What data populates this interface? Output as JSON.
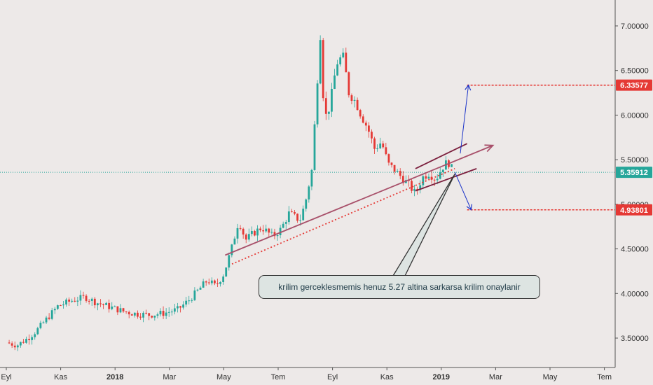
{
  "chart_data": {
    "type": "candlestick",
    "title": "",
    "xlabel": "",
    "ylabel": "",
    "ylim": [
      3.3,
      7.3
    ],
    "y_ticks": [
      "7.00000",
      "6.50000",
      "6.00000",
      "5.50000",
      "5.00000",
      "4.50000",
      "4.00000",
      "3.50000"
    ],
    "y_tick_values": [
      7.0,
      6.5,
      6.0,
      5.5,
      5.0,
      4.5,
      4.0,
      3.5
    ],
    "x_ticks": [
      "Eyl",
      "Kas",
      "2018",
      "Mar",
      "May",
      "Tem",
      "Eyl",
      "Kas",
      "2019",
      "Mar",
      "May",
      "Tem"
    ],
    "x_ticks_bold": [
      false,
      false,
      true,
      false,
      false,
      false,
      false,
      false,
      true,
      false,
      false,
      false
    ],
    "x_range_months": [
      0,
      22.7
    ],
    "price_path": [
      [
        0,
        3.45
      ],
      [
        0.4,
        3.42
      ],
      [
        0.8,
        3.5
      ],
      [
        1.1,
        3.58
      ],
      [
        1.5,
        3.72
      ],
      [
        1.9,
        3.86
      ],
      [
        2.4,
        3.92
      ],
      [
        2.9,
        3.96
      ],
      [
        3.3,
        3.9
      ],
      [
        3.8,
        3.85
      ],
      [
        4.3,
        3.8
      ],
      [
        4.8,
        3.77
      ],
      [
        5.3,
        3.76
      ],
      [
        5.8,
        3.78
      ],
      [
        6.3,
        3.82
      ],
      [
        6.7,
        3.92
      ],
      [
        7.1,
        4.05
      ],
      [
        7.4,
        4.15
      ],
      [
        7.7,
        4.08
      ],
      [
        8.0,
        4.22
      ],
      [
        8.3,
        4.52
      ],
      [
        8.55,
        4.82
      ],
      [
        8.8,
        4.6
      ],
      [
        9.1,
        4.68
      ],
      [
        9.4,
        4.74
      ],
      [
        9.8,
        4.64
      ],
      [
        10.1,
        4.72
      ],
      [
        10.4,
        4.9
      ],
      [
        10.8,
        4.82
      ],
      [
        11.0,
        5.02
      ],
      [
        11.25,
        5.4
      ],
      [
        11.4,
        6.2
      ],
      [
        11.55,
        6.9
      ],
      [
        11.7,
        5.95
      ],
      [
        11.9,
        6.1
      ],
      [
        12.05,
        6.4
      ],
      [
        12.2,
        6.62
      ],
      [
        12.4,
        6.65
      ],
      [
        12.6,
        6.25
      ],
      [
        12.85,
        6.15
      ],
      [
        13.05,
        6.0
      ],
      [
        13.3,
        5.85
      ],
      [
        13.55,
        5.62
      ],
      [
        13.8,
        5.7
      ],
      [
        14.05,
        5.45
      ],
      [
        14.3,
        5.38
      ],
      [
        14.55,
        5.3
      ],
      [
        14.8,
        5.22
      ],
      [
        15.05,
        5.12
      ],
      [
        15.3,
        5.3
      ],
      [
        15.55,
        5.35
      ],
      [
        15.8,
        5.28
      ],
      [
        16.05,
        5.42
      ],
      [
        16.25,
        5.48
      ],
      [
        16.45,
        5.36
      ]
    ],
    "price_lines": [
      {
        "label": "6.33577",
        "value": 6.33577,
        "color": "#e53935"
      },
      {
        "label": "5.35912",
        "value": 5.35912,
        "color": "#26a69a"
      },
      {
        "label": "4.93801",
        "value": 4.93801,
        "color": "#e53935"
      }
    ],
    "trendlines": [
      {
        "id": "main-trendline-arrow",
        "from": [
          8.05,
          4.43
        ],
        "to": [
          17.9,
          5.66
        ],
        "color": "#a8506a",
        "style": "solid",
        "arrow": true
      },
      {
        "id": "dotted-support",
        "from": [
          8.3,
          4.33
        ],
        "to": [
          16.5,
          5.4
        ],
        "color": "#e53935",
        "style": "dotted",
        "arrow": false
      },
      {
        "id": "channel-upper",
        "from": [
          15.05,
          5.4
        ],
        "to": [
          16.95,
          5.68
        ],
        "color": "#7b1f3d",
        "style": "solid",
        "arrow": false
      },
      {
        "id": "channel-lower",
        "from": [
          15.05,
          5.15
        ],
        "to": [
          17.3,
          5.4
        ],
        "color": "#7b1f3d",
        "style": "solid",
        "arrow": false
      }
    ],
    "projections": [
      {
        "id": "up-projection-arrow",
        "from": [
          16.7,
          5.57
        ],
        "to": [
          17.0,
          6.33577
        ],
        "color": "#1a33c8"
      },
      {
        "id": "down-projection-arrow",
        "from": [
          16.5,
          5.36
        ],
        "to": [
          17.1,
          4.93801
        ],
        "color": "#1a33c8"
      }
    ],
    "annotation": {
      "text": "krilim gerceklesmemis henuz 5.27 altina sarkarsa krilim onaylanir",
      "pointer_to": [
        16.5,
        5.34
      ]
    },
    "colors": {
      "up": "#26a69a",
      "down": "#e53935",
      "background": "#ede9e8"
    }
  }
}
